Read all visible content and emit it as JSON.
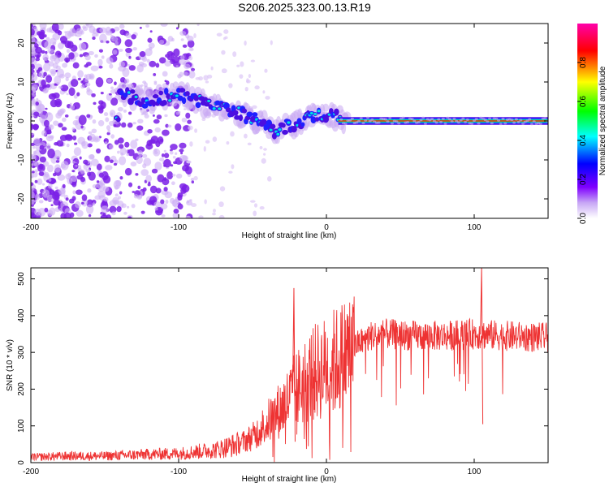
{
  "title": "S206.2025.323.00.13.R19",
  "colors": {
    "snr_line": "#ee3333",
    "axis": "#000000",
    "background": "#ffffff"
  },
  "chart_data": [
    {
      "type": "heatmap",
      "name": "spectrogram",
      "xlabel": "Height of straight line (km)",
      "ylabel": "Frequency (Hz)",
      "xlim": [
        -200,
        150
      ],
      "ylim": [
        -25,
        25
      ],
      "x_ticks": [
        -200,
        -100,
        0,
        100
      ],
      "x_tick_labels": [
        "-200",
        "-100",
        "0",
        "100"
      ],
      "y_ticks": [
        -20,
        -10,
        0,
        10,
        20
      ],
      "y_tick_labels": [
        "-20",
        "-10",
        "0",
        "10",
        "20"
      ],
      "colorbar": {
        "label": "Normalized spectral amplitude",
        "range": [
          0,
          1
        ],
        "ticks": [
          0.0,
          0.2,
          0.4,
          0.6,
          0.8
        ],
        "tick_labels": [
          "0.0",
          "0.2",
          "0.4",
          "0.6",
          "0.8"
        ],
        "colormap": [
          "#ffffff",
          "#7f00ff",
          "#0000ff",
          "#00ffff",
          "#00ff00",
          "#ffff00",
          "#ff0000",
          "#ff00aa"
        ]
      },
      "ridge": {
        "points": [
          {
            "x": -140,
            "f": 7,
            "amp": 0.25
          },
          {
            "x": -120,
            "f": 5,
            "amp": 0.2
          },
          {
            "x": -100,
            "f": 7,
            "amp": 0.3
          },
          {
            "x": -80,
            "f": 4,
            "amp": 0.25
          },
          {
            "x": -60,
            "f": 2,
            "amp": 0.25
          },
          {
            "x": -45,
            "f": 0,
            "amp": 0.2
          },
          {
            "x": -35,
            "f": -3,
            "amp": 0.2
          },
          {
            "x": -25,
            "f": -1,
            "amp": 0.3
          },
          {
            "x": -15,
            "f": 0,
            "amp": 0.35
          },
          {
            "x": -5,
            "f": 2,
            "amp": 0.5
          },
          {
            "x": 5,
            "f": 1,
            "amp": 0.6
          },
          {
            "x": 15,
            "f": 0,
            "amp": 0.9
          },
          {
            "x": 150,
            "f": 0,
            "amp": 0.95
          }
        ]
      }
    },
    {
      "type": "line",
      "name": "snr",
      "xlabel": "Height of straight line (km)",
      "ylabel": "SNR (10 * v/v)",
      "xlim": [
        -200,
        150
      ],
      "ylim": [
        0,
        530
      ],
      "x_ticks": [
        -200,
        -100,
        0,
        100
      ],
      "x_tick_labels": [
        "-200",
        "-100",
        "0",
        "100"
      ],
      "y_ticks": [
        0,
        100,
        200,
        300,
        400,
        500
      ],
      "y_tick_labels": [
        "0",
        "100",
        "200",
        "300",
        "400",
        "500"
      ],
      "series": [
        {
          "name": "SNR",
          "x": [
            -200,
            -175,
            -150,
            -125,
            -100,
            -75,
            -60,
            -50,
            -40,
            -30,
            -20,
            -10,
            0,
            10,
            20,
            30,
            40,
            60,
            80,
            100,
            120,
            150
          ],
          "y": [
            15,
            18,
            18,
            22,
            25,
            35,
            50,
            70,
            110,
            150,
            200,
            240,
            260,
            285,
            320,
            345,
            350,
            345,
            345,
            350,
            345,
            340
          ]
        }
      ],
      "spikes": [
        {
          "x": -22,
          "y": 475
        },
        {
          "x": 105,
          "y": 530
        }
      ]
    }
  ]
}
